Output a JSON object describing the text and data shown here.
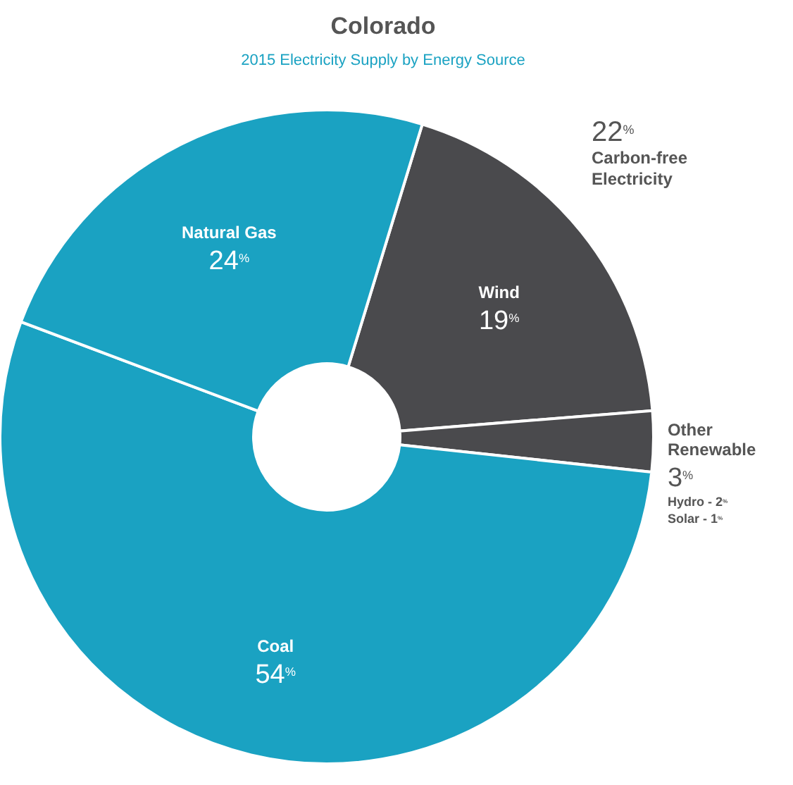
{
  "chart_data": {
    "type": "donut",
    "title": "Colorado",
    "subtitle": "2015 Electricity Supply by Energy Source",
    "categories": [
      "Wind",
      "Other Renewable",
      "Coal",
      "Natural Gas"
    ],
    "values": [
      19,
      3,
      54,
      24
    ],
    "colors": [
      "#4a4a4d",
      "#4a4a4d",
      "#1aa2c2",
      "#1aa2c2"
    ],
    "value_labels": [
      "19$^{%}$",
      "3$^{%}$",
      "54$^{%}$",
      "24$^{%}$"
    ],
    "annotations": [
      "22$^{%}$ Carbon-free Electricity",
      "Hydro - 2$^{%}$",
      "Solar - 1$^{%}$"
    ]
  }
}
